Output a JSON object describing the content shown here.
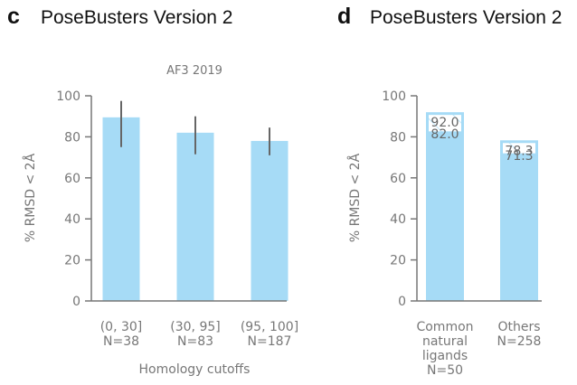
{
  "panels": {
    "c": {
      "letter": "c",
      "title": "PoseBusters Version 2"
    },
    "d": {
      "letter": "d",
      "title": "PoseBusters Version 2"
    }
  },
  "colors": {
    "bar": "#a6dbf6",
    "bar_outline": "#a6dbf6",
    "error_bar": "#666666",
    "axis": "#777777",
    "text": "#777777"
  },
  "chart_data": [
    {
      "type": "bar",
      "panel": "c",
      "subtitle": "AF3 2019",
      "xlabel": "Homology cutoffs",
      "ylabel": "% RMSD < 2Å",
      "ylim": [
        0,
        100
      ],
      "yticks": [
        "0",
        "20",
        "40",
        "60",
        "80",
        "100"
      ],
      "categories": [
        [
          "(0, 30]",
          "N=38"
        ],
        [
          "(30, 95]",
          "N=83"
        ],
        [
          "(95, 100]",
          "N=187"
        ]
      ],
      "values": [
        89.5,
        82,
        78
      ],
      "error_low": [
        75,
        71.5,
        71
      ],
      "error_high": [
        97.5,
        90,
        84.5
      ]
    },
    {
      "type": "bar",
      "panel": "d",
      "subtitle": "",
      "xlabel": "",
      "ylabel": "% RMSD < 2Å",
      "ylim": [
        0,
        100
      ],
      "yticks": [
        "0",
        "20",
        "40",
        "60",
        "80",
        "100"
      ],
      "categories": [
        [
          "Common",
          "natural",
          "ligands",
          "N=50"
        ],
        [
          "Others",
          "N=258"
        ]
      ],
      "values": [
        82.0,
        71.3
      ],
      "values_upper": [
        92.0,
        78.3
      ],
      "value_labels": [
        "82.0",
        "71.3"
      ],
      "upper_labels": [
        "92.0",
        "78.3"
      ]
    }
  ]
}
